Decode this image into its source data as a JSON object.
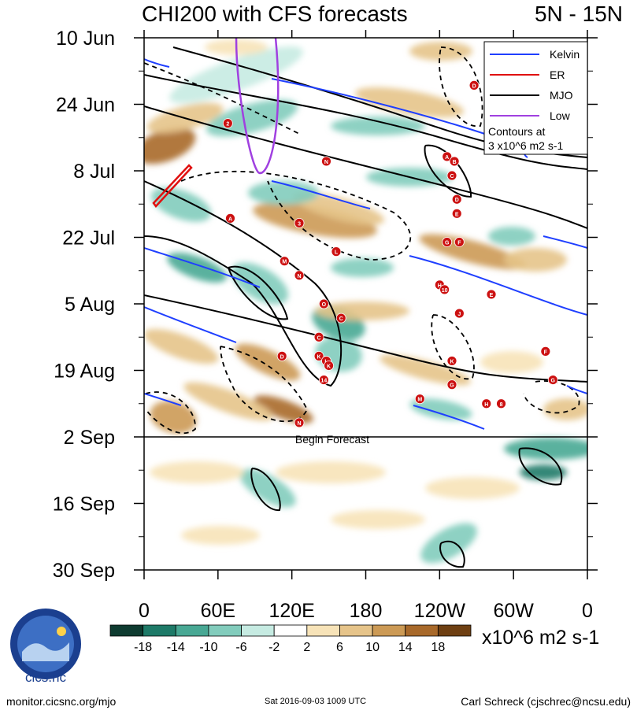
{
  "header": {
    "title": "CHI200 with CFS forecasts",
    "region": "5N - 15N"
  },
  "chart_data": {
    "type": "heatmap",
    "title": "CHI200 with CFS forecasts",
    "region": "5N - 15N",
    "y_ticks": [
      "10 Jun",
      "24 Jun",
      "8 Jul",
      "22 Jul",
      "5 Aug",
      "19 Aug",
      "2 Sep",
      "16 Sep",
      "30 Sep"
    ],
    "x_ticks": [
      "0",
      "60E",
      "120E",
      "180",
      "120W",
      "60W",
      "0"
    ],
    "x_range_deg": [
      0,
      360
    ],
    "forecast_begin": {
      "date": "2 Sep",
      "label": "Begin Forecast"
    },
    "legend": {
      "entries": [
        {
          "name": "Kelvin",
          "color": "#1f3fff"
        },
        {
          "name": "ER",
          "color": "#e01010"
        },
        {
          "name": "MJO",
          "color": "#000000"
        },
        {
          "name": "Low",
          "color": "#a040e0"
        }
      ],
      "note_line1": "Contours at",
      "note_line2": "3 x10^6 m2 s-1"
    },
    "colorbar": {
      "labels": [
        "-18",
        "-14",
        "-10",
        "-6",
        "-2",
        "2",
        "6",
        "10",
        "14",
        "18"
      ],
      "colors": [
        "#0e3b30",
        "#1e7a68",
        "#48a894",
        "#82ccbc",
        "#c6ebe2",
        "#ffffff",
        "#f7e3b8",
        "#e6c48a",
        "#cc9a55",
        "#a8692a",
        "#6e3f12"
      ],
      "units": "x10^6 m2 s-1"
    },
    "storms": [
      {
        "label": "2",
        "x": 68,
        "day": 18
      },
      {
        "label": "N",
        "x": 148,
        "day": 26
      },
      {
        "label": "D",
        "x": 268,
        "day": 10
      },
      {
        "label": "A",
        "x": 246,
        "day": 25
      },
      {
        "label": "B",
        "x": 252,
        "day": 26
      },
      {
        "label": "C",
        "x": 250,
        "day": 29
      },
      {
        "label": "D",
        "x": 254,
        "day": 34
      },
      {
        "label": "E",
        "x": 254,
        "day": 37
      },
      {
        "label": "A",
        "x": 70,
        "day": 38
      },
      {
        "label": "3",
        "x": 126,
        "day": 39
      },
      {
        "label": "G",
        "x": 246,
        "day": 43
      },
      {
        "label": "F",
        "x": 256,
        "day": 43
      },
      {
        "label": "L",
        "x": 156,
        "day": 45
      },
      {
        "label": "M",
        "x": 114,
        "day": 47
      },
      {
        "label": "N",
        "x": 126,
        "day": 50
      },
      {
        "label": "H",
        "x": 240,
        "day": 52
      },
      {
        "label": "10",
        "x": 244,
        "day": 53
      },
      {
        "label": "E",
        "x": 282,
        "day": 54
      },
      {
        "label": "O",
        "x": 146,
        "day": 56
      },
      {
        "label": "J",
        "x": 256,
        "day": 58
      },
      {
        "label": "C",
        "x": 160,
        "day": 59
      },
      {
        "label": "C",
        "x": 142,
        "day": 63
      },
      {
        "label": "D",
        "x": 112,
        "day": 67
      },
      {
        "label": "K",
        "x": 142,
        "day": 67
      },
      {
        "label": "L",
        "x": 148,
        "day": 68
      },
      {
        "label": "K",
        "x": 150,
        "day": 69
      },
      {
        "label": "K",
        "x": 250,
        "day": 68
      },
      {
        "label": "F",
        "x": 326,
        "day": 66
      },
      {
        "label": "G",
        "x": 332,
        "day": 72
      },
      {
        "label": "14",
        "x": 146,
        "day": 72
      },
      {
        "label": "G",
        "x": 250,
        "day": 73
      },
      {
        "label": "M",
        "x": 224,
        "day": 76
      },
      {
        "label": "H",
        "x": 278,
        "day": 77
      },
      {
        "label": "8",
        "x": 290,
        "day": 77
      },
      {
        "label": "N",
        "x": 126,
        "day": 81
      }
    ]
  },
  "footer": {
    "left": "monitor.cicsnc.org/mjo",
    "center": "Sat 2016-09-03 1009 UTC",
    "right": "Carl Schreck (cjschrec@ncsu.edu)",
    "logo_text": "cics.nc",
    "logo_ring": "Cooperative Institute for Climate and Satellites"
  },
  "colors": {
    "kelvin": "#1f3fff",
    "er": "#e01010",
    "mjo": "#000000",
    "low": "#a040e0",
    "storm": "#cc1111"
  }
}
